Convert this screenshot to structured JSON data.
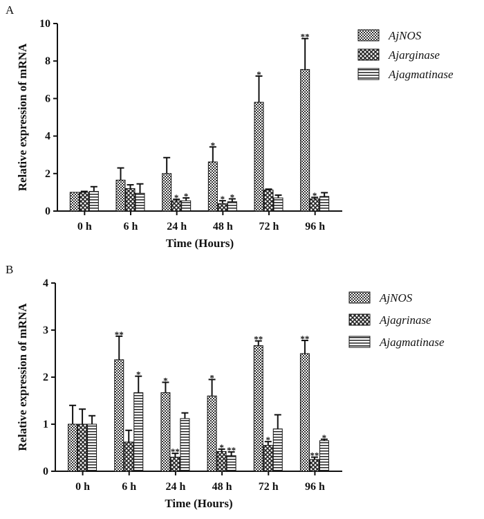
{
  "chart_data": [
    {
      "panel_label": "A",
      "type": "bar",
      "xlabel": "Time (Hours)",
      "ylabel": "Relative expression of mRNA",
      "categories": [
        "0 h",
        "6 h",
        "24 h",
        "48 h",
        "72 h",
        "96 h"
      ],
      "ylim": [
        0,
        10
      ],
      "yticks": [
        0,
        2,
        4,
        6,
        8,
        10
      ],
      "legend_position": "right",
      "grid": false,
      "series": [
        {
          "name": "AjNOS",
          "pattern": "checker",
          "values": [
            1.0,
            1.65,
            2.0,
            2.62,
            5.8,
            7.55
          ],
          "errors": [
            0.0,
            0.65,
            0.85,
            0.8,
            1.4,
            1.65
          ],
          "significance": [
            "",
            "",
            "",
            "*",
            "*",
            "**"
          ]
        },
        {
          "name": "Ajarginase",
          "pattern": "cross",
          "values": [
            1.0,
            1.2,
            0.55,
            0.4,
            1.12,
            0.65
          ],
          "errors": [
            0.05,
            0.2,
            0.08,
            0.15,
            0.05,
            0.08
          ],
          "significance": [
            "",
            "",
            "*",
            "*",
            "",
            "*"
          ]
        },
        {
          "name": "Ajagmatinase",
          "pattern": "hstripe",
          "values": [
            1.05,
            0.95,
            0.55,
            0.5,
            0.7,
            0.78
          ],
          "errors": [
            0.25,
            0.5,
            0.15,
            0.15,
            0.15,
            0.2
          ],
          "significance": [
            "",
            "",
            "*",
            "*",
            "",
            ""
          ]
        }
      ]
    },
    {
      "panel_label": "B",
      "type": "bar",
      "xlabel": "Time (Hours)",
      "ylabel": "Relative expression of mRNA",
      "categories": [
        "0 h",
        "6 h",
        "24 h",
        "48 h",
        "72 h",
        "96 h"
      ],
      "ylim": [
        0,
        4
      ],
      "yticks": [
        0,
        1,
        2,
        3,
        4
      ],
      "legend_position": "right",
      "grid": false,
      "series": [
        {
          "name": "AjNOS",
          "pattern": "checker",
          "values": [
            1.0,
            2.37,
            1.67,
            1.6,
            2.67,
            2.5
          ],
          "errors": [
            0.4,
            0.5,
            0.22,
            0.35,
            0.1,
            0.28
          ],
          "significance": [
            "",
            "**",
            "*",
            "*",
            "**",
            "**"
          ]
        },
        {
          "name": "Ajagrinase",
          "pattern": "cross",
          "values": [
            1.0,
            0.62,
            0.3,
            0.42,
            0.55,
            0.25
          ],
          "errors": [
            0.32,
            0.25,
            0.08,
            0.05,
            0.08,
            0.05
          ],
          "significance": [
            "",
            "",
            "**",
            "*",
            "*",
            "**"
          ]
        },
        {
          "name": "Ajagmatinase",
          "pattern": "hstripe",
          "values": [
            1.0,
            1.67,
            1.12,
            0.33,
            0.9,
            0.65
          ],
          "errors": [
            0.18,
            0.35,
            0.12,
            0.08,
            0.3,
            0.03
          ],
          "significance": [
            "",
            "*",
            "",
            "**",
            "",
            "*"
          ]
        }
      ]
    }
  ]
}
